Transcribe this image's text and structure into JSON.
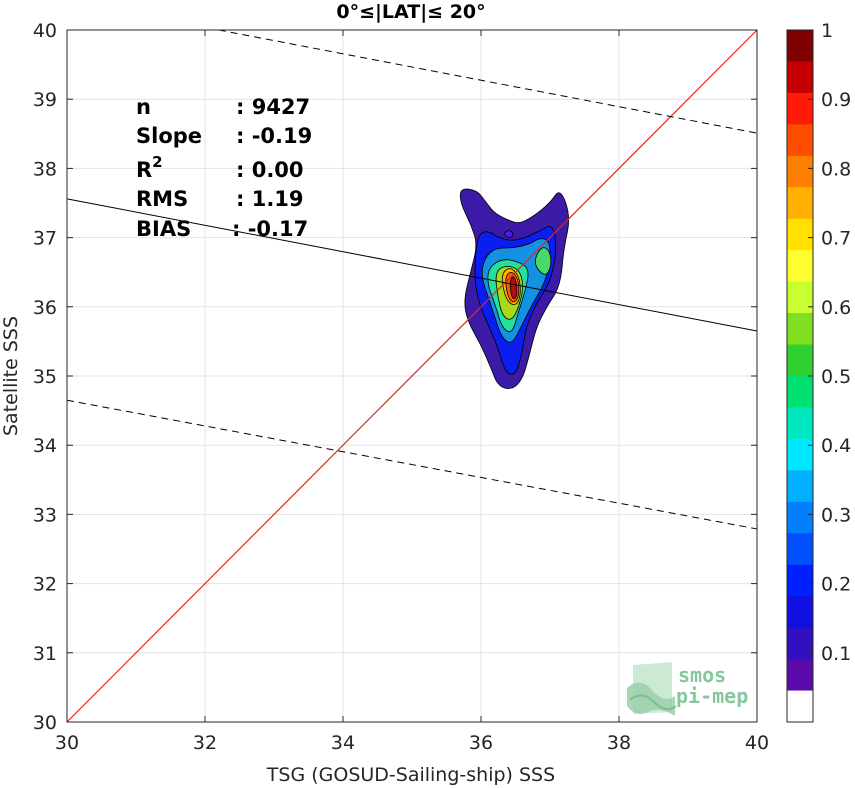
{
  "chart_data": {
    "type": "scatter",
    "subtype": "density-contour",
    "title": "0°≤|LAT|≤ 20°",
    "xlabel": "TSG (GOSUD-Sailing-ship) SSS",
    "ylabel": "Satellite SSS",
    "xlim": [
      30,
      40
    ],
    "ylim": [
      30,
      40
    ],
    "xticks": [
      "30",
      "32",
      "34",
      "36",
      "38",
      "40"
    ],
    "yticks": [
      "30",
      "31",
      "32",
      "33",
      "34",
      "35",
      "36",
      "37",
      "38",
      "39",
      "40"
    ],
    "grid": true,
    "stats": [
      {
        "label": "n",
        "value": ": 9427"
      },
      {
        "label": "Slope",
        "value": ": -0.19"
      },
      {
        "label": "R",
        "sup": "2",
        "value": ": 0.00"
      },
      {
        "label": "RMS",
        "value": ": 1.19"
      },
      {
        "label": "BIAS",
        "value": ": -0.17"
      }
    ],
    "identity_line": {
      "from": [
        30,
        30
      ],
      "to": [
        40,
        40
      ],
      "color": "#e8221a"
    },
    "fit_line": {
      "from": [
        30,
        37.56
      ],
      "to": [
        40,
        35.65
      ],
      "color": "#000000"
    },
    "band_lines": [
      {
        "from": [
          32.2,
          40.0
        ],
        "to": [
          40,
          38.51
        ]
      },
      {
        "from": [
          30,
          34.65
        ],
        "to": [
          40,
          32.79
        ]
      }
    ],
    "density_contours": [
      {
        "level": 0.05,
        "color": "#3c1aa8",
        "points": [
          [
            35.7,
            37.72
          ],
          [
            35.95,
            37.68
          ],
          [
            36.08,
            37.5
          ],
          [
            36.2,
            37.35
          ],
          [
            36.4,
            37.25
          ],
          [
            36.55,
            37.2
          ],
          [
            36.75,
            37.3
          ],
          [
            37.0,
            37.5
          ],
          [
            37.15,
            37.72
          ],
          [
            37.3,
            37.3
          ],
          [
            37.2,
            36.85
          ],
          [
            37.15,
            36.3
          ],
          [
            36.95,
            36.0
          ],
          [
            36.8,
            35.7
          ],
          [
            36.7,
            35.3
          ],
          [
            36.6,
            34.95
          ],
          [
            36.45,
            34.8
          ],
          [
            36.25,
            34.85
          ],
          [
            36.15,
            35.1
          ],
          [
            36.0,
            35.45
          ],
          [
            35.8,
            35.8
          ],
          [
            35.75,
            36.1
          ],
          [
            35.85,
            36.5
          ],
          [
            35.95,
            36.9
          ],
          [
            35.85,
            37.2
          ],
          [
            35.7,
            37.5
          ]
        ]
      },
      {
        "level": 0.15,
        "color": "#0a1ef0",
        "points": [
          [
            35.95,
            37.05
          ],
          [
            36.1,
            37.1
          ],
          [
            36.25,
            37.0
          ],
          [
            36.45,
            36.95
          ],
          [
            36.65,
            37.0
          ],
          [
            36.85,
            37.1
          ],
          [
            37.05,
            37.2
          ],
          [
            37.1,
            36.8
          ],
          [
            37.0,
            36.35
          ],
          [
            36.8,
            36.05
          ],
          [
            36.65,
            35.7
          ],
          [
            36.6,
            35.35
          ],
          [
            36.5,
            35.0
          ],
          [
            36.35,
            35.05
          ],
          [
            36.25,
            35.4
          ],
          [
            36.1,
            35.75
          ],
          [
            35.95,
            36.1
          ],
          [
            35.9,
            36.5
          ]
        ]
      },
      {
        "level": 0.3,
        "color": "#1491e1",
        "points": [
          [
            36.05,
            36.7
          ],
          [
            36.2,
            36.85
          ],
          [
            36.45,
            36.85
          ],
          [
            36.7,
            36.9
          ],
          [
            36.85,
            37.0
          ],
          [
            37.0,
            36.95
          ],
          [
            37.0,
            36.6
          ],
          [
            36.9,
            36.3
          ],
          [
            36.75,
            36.05
          ],
          [
            36.6,
            35.75
          ],
          [
            36.45,
            35.45
          ],
          [
            36.3,
            35.55
          ],
          [
            36.2,
            35.85
          ],
          [
            36.1,
            36.15
          ],
          [
            36.0,
            36.45
          ]
        ]
      },
      {
        "level": 0.4,
        "color": "#21e0a0",
        "points": [
          [
            36.1,
            36.55
          ],
          [
            36.3,
            36.7
          ],
          [
            36.55,
            36.65
          ],
          [
            36.7,
            36.55
          ],
          [
            36.65,
            36.25
          ],
          [
            36.55,
            35.95
          ],
          [
            36.45,
            35.6
          ],
          [
            36.3,
            35.7
          ],
          [
            36.2,
            36.05
          ],
          [
            36.1,
            36.3
          ]
        ]
      },
      {
        "level": 0.4,
        "color": "#4ad86a",
        "points": [
          [
            36.8,
            36.75
          ],
          [
            36.9,
            36.88
          ],
          [
            37.0,
            36.8
          ],
          [
            37.02,
            36.6
          ],
          [
            36.95,
            36.45
          ],
          [
            36.85,
            36.5
          ],
          [
            36.78,
            36.62
          ]
        ]
      },
      {
        "level": 0.6,
        "color": "#a8d818",
        "points": [
          [
            36.2,
            36.5
          ],
          [
            36.35,
            36.6
          ],
          [
            36.55,
            36.55
          ],
          [
            36.62,
            36.3
          ],
          [
            36.55,
            36.0
          ],
          [
            36.45,
            35.8
          ],
          [
            36.32,
            35.85
          ],
          [
            36.25,
            36.1
          ]
        ]
      },
      {
        "level": 0.7,
        "color": "#ffb000",
        "points": [
          [
            36.3,
            36.48
          ],
          [
            36.42,
            36.58
          ],
          [
            36.55,
            36.45
          ],
          [
            36.58,
            36.2
          ],
          [
            36.52,
            36.02
          ],
          [
            36.4,
            36.05
          ],
          [
            36.32,
            36.25
          ]
        ]
      },
      {
        "level": 0.8,
        "color": "#ff5a0a",
        "points": [
          [
            36.36,
            36.45
          ],
          [
            36.45,
            36.52
          ],
          [
            36.55,
            36.38
          ],
          [
            36.55,
            36.15
          ],
          [
            36.48,
            36.05
          ],
          [
            36.4,
            36.12
          ],
          [
            36.36,
            36.3
          ]
        ]
      },
      {
        "level": 0.95,
        "color": "#b40d0d",
        "points": [
          [
            36.42,
            36.4
          ],
          [
            36.48,
            36.45
          ],
          [
            36.52,
            36.32
          ],
          [
            36.52,
            36.15
          ],
          [
            36.47,
            36.1
          ],
          [
            36.43,
            36.2
          ]
        ]
      },
      {
        "level": 0.1,
        "color": "#4a1be6",
        "points": [
          [
            36.32,
            37.05
          ],
          [
            36.4,
            37.12
          ],
          [
            36.48,
            37.05
          ],
          [
            36.42,
            36.98
          ]
        ]
      }
    ],
    "colorbar": {
      "ticks": [
        "1",
        "0.9",
        "0.8",
        "0.7",
        "0.6",
        "0.5",
        "0.4",
        "0.3",
        "0.2",
        "0.1"
      ],
      "tick_values": [
        1,
        0.9,
        0.8,
        0.7,
        0.6,
        0.5,
        0.4,
        0.3,
        0.2,
        0.1
      ],
      "colors": [
        "#7f0000",
        "#c40000",
        "#ff1a0a",
        "#ff4d00",
        "#ff8000",
        "#ffb000",
        "#ffe000",
        "#ffff30",
        "#c8ff30",
        "#80e020",
        "#30d030",
        "#00e070",
        "#00e8c0",
        "#00e8ff",
        "#00b0ff",
        "#0080ff",
        "#0050ff",
        "#0020ff",
        "#1010e0",
        "#3010c0",
        "#5a0aaa",
        "#ffffff"
      ]
    },
    "logo": {
      "line1": "smos",
      "line2": "pi-mep"
    }
  }
}
